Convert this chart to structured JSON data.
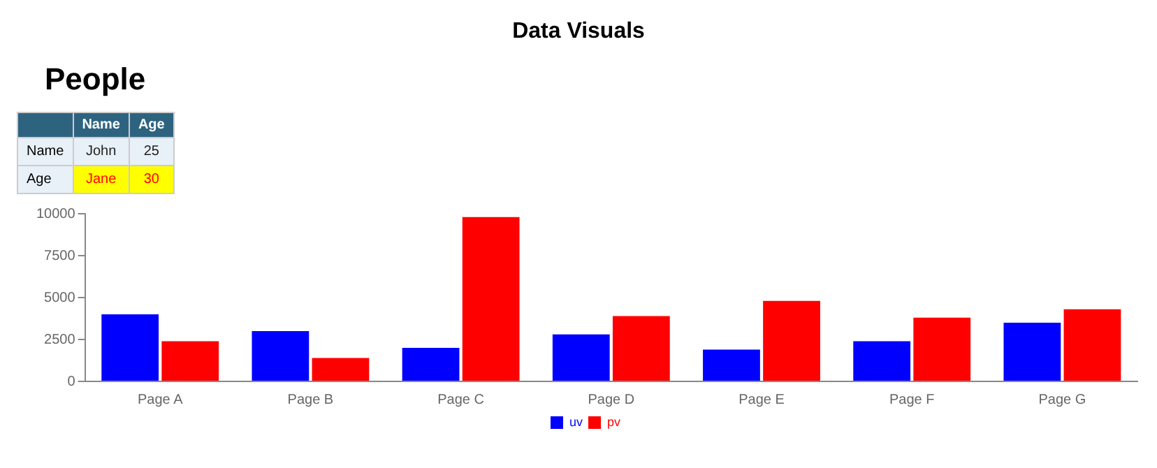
{
  "chart_data": [
    {
      "type": "other",
      "title": "Data Visuals",
      "subtitle": "People",
      "categories": [
        "Name",
        "Age"
      ],
      "y_categories": [
        "Name",
        "Age"
      ],
      "cell_labels": [
        [
          "John",
          "25"
        ],
        [
          "Jane",
          "30"
        ]
      ]
    },
    {
      "type": "bar",
      "categories": [
        "Page A",
        "Page B",
        "Page C",
        "Page D",
        "Page E",
        "Page F",
        "Page G"
      ],
      "series": [
        {
          "name": "uv",
          "color": "#0000ff",
          "values": [
            4000,
            3000,
            2000,
            2800,
            1900,
            2400,
            3500
          ]
        },
        {
          "name": "pv",
          "color": "#ff0000",
          "values": [
            2400,
            1400,
            9800,
            3900,
            4800,
            3800,
            4300
          ]
        }
      ],
      "ylim": [
        0,
        10000
      ],
      "yticks": [
        0,
        2500,
        5000,
        7500,
        10000
      ],
      "grid": false,
      "legend": "bottom"
    }
  ]
}
